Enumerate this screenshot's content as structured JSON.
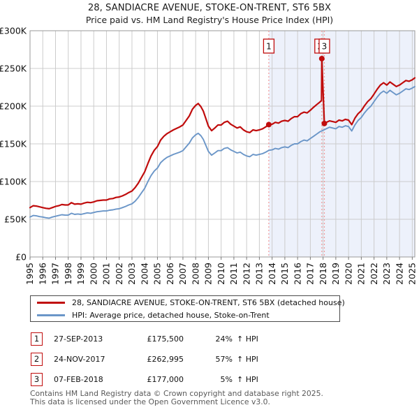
{
  "chart_data": {
    "type": "line",
    "title": "28, SANDIACRE AVENUE, STOKE-ON-TRENT, ST6 5BX",
    "subtitle": "Price paid vs. HM Land Registry's House Price Index (HPI)",
    "x_range": [
      1995,
      2025.2
    ],
    "x_ticks": [
      1995,
      1996,
      1997,
      1998,
      1999,
      2000,
      2001,
      2002,
      2003,
      2004,
      2005,
      2006,
      2007,
      2008,
      2009,
      2010,
      2011,
      2012,
      2013,
      2014,
      2015,
      2016,
      2017,
      2018,
      2019,
      2020,
      2021,
      2022,
      2023,
      2024,
      2025
    ],
    "ylim_k": [
      0,
      300
    ],
    "y_ticks": [
      {
        "v": 0,
        "label": "£0"
      },
      {
        "v": 50,
        "label": "£50K"
      },
      {
        "v": 100,
        "label": "£100K"
      },
      {
        "v": 150,
        "label": "£150K"
      },
      {
        "v": 200,
        "label": "£200K"
      },
      {
        "v": 250,
        "label": "£250K"
      },
      {
        "v": 300,
        "label": "£300K"
      }
    ],
    "grid": true,
    "legend_position": "bottom",
    "colors": {
      "red": "#c00c0c",
      "blue": "#6b96c8",
      "grid": "#cccccc",
      "border": "#999999",
      "tick": "#777777",
      "shade": "#edf1fb",
      "event_line": "#f19999",
      "label_text": "#111111"
    },
    "shade_from_t": 2013.74,
    "series": [
      {
        "name": "28, SANDIACRE AVENUE, STOKE-ON-TRENT, ST6 5BX (detached house)",
        "color": "#c00c0c",
        "width": 2.2,
        "points": [
          [
            1995.0,
            65.5
          ],
          [
            1995.25,
            68
          ],
          [
            1995.5,
            67.5
          ],
          [
            1995.75,
            66.5
          ],
          [
            1996.0,
            65.5
          ],
          [
            1996.25,
            64.5
          ],
          [
            1996.5,
            64
          ],
          [
            1996.75,
            65.5
          ],
          [
            1997.0,
            67
          ],
          [
            1997.25,
            68
          ],
          [
            1997.5,
            69.5
          ],
          [
            1997.75,
            69
          ],
          [
            1998.0,
            69
          ],
          [
            1998.25,
            72
          ],
          [
            1998.5,
            70
          ],
          [
            1998.75,
            70.5
          ],
          [
            1999.0,
            70
          ],
          [
            1999.25,
            71.5
          ],
          [
            1999.5,
            72.5
          ],
          [
            1999.75,
            72
          ],
          [
            2000.0,
            73
          ],
          [
            2000.25,
            74.5
          ],
          [
            2000.5,
            75
          ],
          [
            2000.75,
            75.5
          ],
          [
            2001.0,
            75.5
          ],
          [
            2001.25,
            77
          ],
          [
            2001.5,
            77.5
          ],
          [
            2001.75,
            79
          ],
          [
            2002.0,
            79.5
          ],
          [
            2002.25,
            81
          ],
          [
            2002.5,
            83
          ],
          [
            2002.75,
            85.5
          ],
          [
            2003.0,
            87.5
          ],
          [
            2003.25,
            92
          ],
          [
            2003.5,
            98
          ],
          [
            2003.75,
            105.5
          ],
          [
            2004.0,
            113
          ],
          [
            2004.25,
            124
          ],
          [
            2004.5,
            134
          ],
          [
            2004.75,
            141.5
          ],
          [
            2005.0,
            146.5
          ],
          [
            2005.25,
            155
          ],
          [
            2005.5,
            160
          ],
          [
            2005.75,
            163.5
          ],
          [
            2006.0,
            166
          ],
          [
            2006.25,
            168.5
          ],
          [
            2006.5,
            170.5
          ],
          [
            2006.75,
            172.5
          ],
          [
            2007.0,
            175
          ],
          [
            2007.25,
            181
          ],
          [
            2007.5,
            187
          ],
          [
            2007.75,
            196
          ],
          [
            2008.0,
            201
          ],
          [
            2008.2,
            203.5
          ],
          [
            2008.4,
            199.5
          ],
          [
            2008.6,
            193.5
          ],
          [
            2008.8,
            183.5
          ],
          [
            2009.0,
            173.5
          ],
          [
            2009.25,
            167.5
          ],
          [
            2009.5,
            171
          ],
          [
            2009.75,
            175
          ],
          [
            2010.0,
            175
          ],
          [
            2010.25,
            178.5
          ],
          [
            2010.5,
            180
          ],
          [
            2010.75,
            176
          ],
          [
            2011.0,
            173.5
          ],
          [
            2011.25,
            171
          ],
          [
            2011.5,
            172.5
          ],
          [
            2011.75,
            168.5
          ],
          [
            2012.0,
            166
          ],
          [
            2012.25,
            165
          ],
          [
            2012.5,
            168.5
          ],
          [
            2012.75,
            167.5
          ],
          [
            2013.0,
            168.5
          ],
          [
            2013.25,
            170
          ],
          [
            2013.5,
            172.5
          ],
          [
            2013.74,
            175.5
          ],
          [
            2014.0,
            176
          ],
          [
            2014.25,
            178.5
          ],
          [
            2014.5,
            177.5
          ],
          [
            2014.75,
            180
          ],
          [
            2015.0,
            181
          ],
          [
            2015.25,
            180
          ],
          [
            2015.5,
            183.5
          ],
          [
            2015.75,
            186
          ],
          [
            2016.0,
            186
          ],
          [
            2016.25,
            190
          ],
          [
            2016.5,
            192
          ],
          [
            2016.75,
            191
          ],
          [
            2017.0,
            194.5
          ],
          [
            2017.25,
            198.5
          ],
          [
            2017.5,
            202
          ],
          [
            2017.75,
            205.5
          ],
          [
            2017.88,
            207.5
          ],
          [
            2017.9,
            263
          ],
          [
            2018.1,
            177
          ],
          [
            2018.25,
            178.5
          ],
          [
            2018.5,
            180.5
          ],
          [
            2018.75,
            179.5
          ],
          [
            2019.0,
            178.5
          ],
          [
            2019.25,
            181.5
          ],
          [
            2019.5,
            180.5
          ],
          [
            2019.75,
            182.5
          ],
          [
            2020.0,
            181.5
          ],
          [
            2020.25,
            175.5
          ],
          [
            2020.5,
            184
          ],
          [
            2020.75,
            190
          ],
          [
            2021.0,
            194
          ],
          [
            2021.25,
            200.5
          ],
          [
            2021.5,
            206
          ],
          [
            2021.75,
            210
          ],
          [
            2022.0,
            216
          ],
          [
            2022.25,
            222.5
          ],
          [
            2022.5,
            228
          ],
          [
            2022.75,
            231
          ],
          [
            2023.0,
            228
          ],
          [
            2023.25,
            232
          ],
          [
            2023.5,
            229
          ],
          [
            2023.75,
            226
          ],
          [
            2024.0,
            228
          ],
          [
            2024.25,
            231
          ],
          [
            2024.5,
            234
          ],
          [
            2024.75,
            233
          ],
          [
            2025.0,
            235
          ],
          [
            2025.2,
            237.5
          ]
        ]
      },
      {
        "name": "HPI: Average price, detached house, Stoke-on-Trent",
        "color": "#6b96c8",
        "width": 1.9,
        "points": [
          [
            1995.0,
            53
          ],
          [
            1995.25,
            55
          ],
          [
            1995.5,
            54.5
          ],
          [
            1995.75,
            53.5
          ],
          [
            1996.0,
            53
          ],
          [
            1996.25,
            52
          ],
          [
            1996.5,
            51.5
          ],
          [
            1996.75,
            53
          ],
          [
            1997.0,
            54
          ],
          [
            1997.25,
            55
          ],
          [
            1997.5,
            56
          ],
          [
            1997.75,
            55.5
          ],
          [
            1998.0,
            55.5
          ],
          [
            1998.25,
            58
          ],
          [
            1998.5,
            56.5
          ],
          [
            1998.75,
            57
          ],
          [
            1999.0,
            56.5
          ],
          [
            1999.25,
            57.5
          ],
          [
            1999.5,
            58.5
          ],
          [
            1999.75,
            58
          ],
          [
            2000.0,
            59
          ],
          [
            2000.25,
            60
          ],
          [
            2000.5,
            60.5
          ],
          [
            2000.75,
            61
          ],
          [
            2001.0,
            61
          ],
          [
            2001.25,
            62
          ],
          [
            2001.5,
            62.5
          ],
          [
            2001.75,
            63.5
          ],
          [
            2002.0,
            64
          ],
          [
            2002.25,
            65.5
          ],
          [
            2002.5,
            67
          ],
          [
            2002.75,
            69
          ],
          [
            2003.0,
            70.5
          ],
          [
            2003.25,
            74
          ],
          [
            2003.5,
            79
          ],
          [
            2003.75,
            85
          ],
          [
            2004.0,
            91
          ],
          [
            2004.25,
            100
          ],
          [
            2004.5,
            108
          ],
          [
            2004.75,
            114
          ],
          [
            2005.0,
            118
          ],
          [
            2005.25,
            125
          ],
          [
            2005.5,
            129
          ],
          [
            2005.75,
            132
          ],
          [
            2006.0,
            134
          ],
          [
            2006.25,
            136
          ],
          [
            2006.5,
            137.5
          ],
          [
            2006.75,
            139
          ],
          [
            2007.0,
            141
          ],
          [
            2007.25,
            146
          ],
          [
            2007.5,
            151
          ],
          [
            2007.75,
            158
          ],
          [
            2008.0,
            162
          ],
          [
            2008.2,
            164
          ],
          [
            2008.4,
            161
          ],
          [
            2008.6,
            156
          ],
          [
            2008.8,
            148
          ],
          [
            2009.0,
            140
          ],
          [
            2009.25,
            135
          ],
          [
            2009.5,
            138
          ],
          [
            2009.75,
            141
          ],
          [
            2010.0,
            141
          ],
          [
            2010.25,
            144
          ],
          [
            2010.5,
            145
          ],
          [
            2010.75,
            142
          ],
          [
            2011.0,
            140
          ],
          [
            2011.25,
            138
          ],
          [
            2011.5,
            139
          ],
          [
            2011.75,
            136
          ],
          [
            2012.0,
            134
          ],
          [
            2012.25,
            133
          ],
          [
            2012.5,
            136
          ],
          [
            2012.75,
            135
          ],
          [
            2013.0,
            136
          ],
          [
            2013.25,
            137
          ],
          [
            2013.5,
            139
          ],
          [
            2013.75,
            141.5
          ],
          [
            2014.0,
            142
          ],
          [
            2014.25,
            144
          ],
          [
            2014.5,
            143
          ],
          [
            2014.75,
            145
          ],
          [
            2015.0,
            146
          ],
          [
            2015.25,
            145
          ],
          [
            2015.5,
            148
          ],
          [
            2015.75,
            150
          ],
          [
            2016.0,
            150
          ],
          [
            2016.25,
            153
          ],
          [
            2016.5,
            155
          ],
          [
            2016.75,
            154
          ],
          [
            2017.0,
            157
          ],
          [
            2017.25,
            160
          ],
          [
            2017.5,
            163
          ],
          [
            2017.75,
            166
          ],
          [
            2018.0,
            168
          ],
          [
            2018.25,
            170
          ],
          [
            2018.5,
            172
          ],
          [
            2018.75,
            171
          ],
          [
            2019.0,
            170
          ],
          [
            2019.25,
            173
          ],
          [
            2019.5,
            172
          ],
          [
            2019.75,
            174
          ],
          [
            2020.0,
            173
          ],
          [
            2020.25,
            167
          ],
          [
            2020.5,
            175
          ],
          [
            2020.75,
            181
          ],
          [
            2021.0,
            185
          ],
          [
            2021.25,
            191
          ],
          [
            2021.5,
            196
          ],
          [
            2021.75,
            200
          ],
          [
            2022.0,
            206
          ],
          [
            2022.25,
            212
          ],
          [
            2022.5,
            217
          ],
          [
            2022.75,
            220
          ],
          [
            2023.0,
            217
          ],
          [
            2023.25,
            221
          ],
          [
            2023.5,
            218
          ],
          [
            2023.75,
            215
          ],
          [
            2024.0,
            217
          ],
          [
            2024.25,
            220
          ],
          [
            2024.5,
            223
          ],
          [
            2024.75,
            222
          ],
          [
            2025.0,
            224
          ],
          [
            2025.2,
            226
          ]
        ]
      }
    ],
    "sales": [
      {
        "n": "1",
        "t": 2013.74,
        "price_k": 175.5,
        "box_dx": 0
      },
      {
        "n": "2",
        "t": 2017.9,
        "price_k": 263.0,
        "box_dx": -2.5
      },
      {
        "n": "3",
        "t": 2018.1,
        "price_k": 177.0,
        "box_dx": 0
      }
    ]
  },
  "legend": {
    "items": [
      {
        "label": "28, SANDIACRE AVENUE, STOKE-ON-TRENT, ST6 5BX (detached house)",
        "color": "#c00c0c"
      },
      {
        "label": "HPI: Average price, detached house, Stoke-on-Trent",
        "color": "#6b96c8"
      }
    ]
  },
  "transactions": [
    {
      "n": "1",
      "date": "27-SEP-2013",
      "price": "£175,500",
      "pct": "24%",
      "suffix": "↑ HPI"
    },
    {
      "n": "2",
      "date": "24-NOV-2017",
      "price": "£262,995",
      "pct": "57%",
      "suffix": "↑ HPI"
    },
    {
      "n": "3",
      "date": "07-FEB-2018",
      "price": "£177,000",
      "pct": "5%",
      "suffix": "↑ HPI"
    }
  ],
  "footer": {
    "line1": "Contains HM Land Registry data © Crown copyright and database right 2025.",
    "line2": "This data is licensed under the Open Government Licence v3.0."
  }
}
